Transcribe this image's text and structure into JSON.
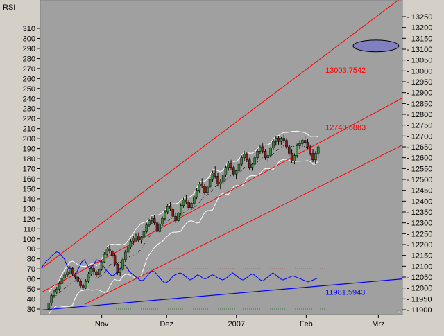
{
  "colors": {
    "window_bg": "#d4d0c8",
    "plot_bg": "#a0a0a0",
    "channel": "#ff0000",
    "rsi": "#0000ff",
    "band": "#ffffff",
    "candle_up": "#3c8c3c",
    "candle_down": "#8b1a1a",
    "ellipse_fill": "#8080c0",
    "rsi_upper_ref": "#a05050",
    "rsi_lower_ref": "#408040"
  },
  "chart_data": {
    "type": "line",
    "left_axis_label": "RSI",
    "left_axis": {
      "min": 30,
      "max": 310,
      "step": 10
    },
    "right_axis": {
      "min": 11900,
      "max": 13250,
      "step": 50
    },
    "x_range": [
      0,
      150
    ],
    "x_ticks": [
      {
        "label": "Nov",
        "x": 25
      },
      {
        "label": "Dez",
        "x": 52
      },
      {
        "label": "2007",
        "x": 81
      },
      {
        "label": "Feb",
        "x": 110
      },
      {
        "label": "Mrz",
        "x": 140
      }
    ],
    "price_annotations": [
      {
        "label": "13003.7542",
        "x": 118,
        "y": 13003.7542,
        "color": "#ff0000"
      },
      {
        "label": "12740.6883",
        "x": 118,
        "y": 12740.6883,
        "color": "#ff0000"
      },
      {
        "label": "11981.5943",
        "x": 118,
        "y": 11981.5943,
        "color": "#0000ff"
      }
    ],
    "channel_lines": [
      {
        "name": "upper",
        "from": [
          0,
          12090
        ],
        "to": [
          150,
          13340
        ]
      },
      {
        "name": "middle",
        "from": [
          0,
          11980
        ],
        "to": [
          150,
          12875
        ]
      },
      {
        "name": "lower",
        "from": [
          18,
          11925
        ],
        "to": [
          150,
          12658
        ]
      }
    ],
    "rsi_trendline": {
      "from": [
        0,
        29
      ],
      "to": [
        150,
        60
      ]
    },
    "rsi_reference_levels": [
      70,
      30
    ],
    "ellipse": {
      "center": [
        139,
        13115
      ],
      "rx": 9.5,
      "ry": 27
    },
    "rsi_values": [
      71,
      75,
      78,
      80,
      83,
      85,
      87,
      86,
      83,
      80,
      74,
      69,
      66,
      64,
      67,
      72,
      77,
      79,
      75,
      70,
      72,
      76,
      79,
      78,
      75,
      71,
      68,
      65,
      63,
      64,
      67,
      70,
      72,
      74,
      71,
      67,
      65,
      63,
      61,
      59,
      58,
      60,
      63,
      66,
      68,
      67,
      64,
      61,
      58,
      56,
      57,
      59,
      62,
      64,
      65,
      66,
      65,
      63,
      61,
      59,
      60,
      62,
      64,
      63,
      61,
      60,
      61,
      63,
      64,
      63,
      61,
      60,
      59,
      60,
      62,
      64,
      66,
      64,
      62,
      60,
      59,
      60,
      62,
      64,
      65,
      63,
      61,
      59,
      58,
      60,
      62,
      64,
      66,
      64,
      62,
      60,
      59,
      60,
      61,
      62,
      63,
      62,
      61,
      60,
      59,
      58,
      57,
      58,
      59,
      60,
      61
    ],
    "candles": [
      [
        11905,
        11935,
        11900,
        11930
      ],
      [
        11930,
        11975,
        11920,
        11965
      ],
      [
        11965,
        11990,
        11955,
        11980
      ],
      [
        11980,
        12005,
        11970,
        11995
      ],
      [
        11995,
        12030,
        11985,
        12020
      ],
      [
        12020,
        12055,
        12015,
        12045
      ],
      [
        12045,
        12075,
        12035,
        12060
      ],
      [
        12060,
        12085,
        12050,
        12075
      ],
      [
        12075,
        12100,
        12065,
        12090
      ],
      [
        12090,
        12095,
        12055,
        12065
      ],
      [
        12065,
        12070,
        12040,
        12050
      ],
      [
        12050,
        12055,
        12020,
        12030
      ],
      [
        12030,
        12040,
        12000,
        12010
      ],
      [
        12010,
        12020,
        11990,
        12000
      ],
      [
        12000,
        12040,
        11995,
        12030
      ],
      [
        12030,
        12075,
        12025,
        12065
      ],
      [
        12065,
        12100,
        12055,
        12090
      ],
      [
        12090,
        12105,
        12060,
        12075
      ],
      [
        12075,
        12080,
        12050,
        12060
      ],
      [
        12060,
        12090,
        12055,
        12085
      ],
      [
        12085,
        12130,
        12080,
        12120
      ],
      [
        12120,
        12165,
        12115,
        12155
      ],
      [
        12155,
        12190,
        12145,
        12180
      ],
      [
        12180,
        12200,
        12160,
        12170
      ],
      [
        12170,
        12175,
        12140,
        12150
      ],
      [
        12150,
        12160,
        12100,
        12110
      ],
      [
        12110,
        12115,
        12060,
        12070
      ],
      [
        12070,
        12090,
        12055,
        12085
      ],
      [
        12085,
        12140,
        12080,
        12130
      ],
      [
        12130,
        12175,
        12120,
        12165
      ],
      [
        12165,
        12200,
        12155,
        12190
      ],
      [
        12190,
        12225,
        12180,
        12215
      ],
      [
        12215,
        12240,
        12200,
        12230
      ],
      [
        12230,
        12250,
        12215,
        12240
      ],
      [
        12240,
        12255,
        12210,
        12220
      ],
      [
        12220,
        12240,
        12205,
        12235
      ],
      [
        12235,
        12270,
        12225,
        12260
      ],
      [
        12260,
        12300,
        12250,
        12290
      ],
      [
        12290,
        12320,
        12280,
        12310
      ],
      [
        12310,
        12330,
        12295,
        12320
      ],
      [
        12320,
        12335,
        12290,
        12300
      ],
      [
        12300,
        12315,
        12250,
        12260
      ],
      [
        12260,
        12300,
        12255,
        12295
      ],
      [
        12295,
        12330,
        12285,
        12320
      ],
      [
        12320,
        12360,
        12310,
        12350
      ],
      [
        12350,
        12385,
        12340,
        12375
      ],
      [
        12375,
        12395,
        12355,
        12365
      ],
      [
        12365,
        12370,
        12320,
        12330
      ],
      [
        12330,
        12345,
        12300,
        12310
      ],
      [
        12310,
        12350,
        12305,
        12345
      ],
      [
        12345,
        12390,
        12335,
        12380
      ],
      [
        12380,
        12415,
        12370,
        12405
      ],
      [
        12405,
        12430,
        12385,
        12395
      ],
      [
        12395,
        12405,
        12360,
        12370
      ],
      [
        12370,
        12395,
        12360,
        12390
      ],
      [
        12390,
        12430,
        12380,
        12420
      ],
      [
        12420,
        12460,
        12410,
        12450
      ],
      [
        12450,
        12490,
        12440,
        12480
      ],
      [
        12480,
        12505,
        12460,
        12470
      ],
      [
        12470,
        12480,
        12430,
        12440
      ],
      [
        12440,
        12470,
        12430,
        12465
      ],
      [
        12465,
        12510,
        12455,
        12500
      ],
      [
        12500,
        12540,
        12490,
        12530
      ],
      [
        12530,
        12560,
        12505,
        12515
      ],
      [
        12515,
        12530,
        12470,
        12480
      ],
      [
        12480,
        12500,
        12455,
        12490
      ],
      [
        12490,
        12530,
        12480,
        12520
      ],
      [
        12520,
        12565,
        12510,
        12555
      ],
      [
        12555,
        12585,
        12540,
        12575
      ],
      [
        12575,
        12590,
        12545,
        12555
      ],
      [
        12555,
        12565,
        12515,
        12525
      ],
      [
        12525,
        12545,
        12500,
        12540
      ],
      [
        12540,
        12580,
        12530,
        12570
      ],
      [
        12570,
        12610,
        12560,
        12600
      ],
      [
        12600,
        12630,
        12585,
        12615
      ],
      [
        12615,
        12625,
        12580,
        12590
      ],
      [
        12590,
        12600,
        12545,
        12555
      ],
      [
        12555,
        12575,
        12540,
        12570
      ],
      [
        12570,
        12610,
        12560,
        12600
      ],
      [
        12600,
        12640,
        12590,
        12630
      ],
      [
        12630,
        12660,
        12615,
        12650
      ],
      [
        12650,
        12665,
        12620,
        12630
      ],
      [
        12630,
        12640,
        12590,
        12600
      ],
      [
        12600,
        12620,
        12580,
        12610
      ],
      [
        12610,
        12650,
        12600,
        12645
      ],
      [
        12645,
        12685,
        12635,
        12675
      ],
      [
        12675,
        12700,
        12655,
        12690
      ],
      [
        12690,
        12700,
        12660,
        12675
      ],
      [
        12675,
        12695,
        12660,
        12690
      ],
      [
        12690,
        12705,
        12670,
        12680
      ],
      [
        12680,
        12690,
        12640,
        12650
      ],
      [
        12650,
        12660,
        12610,
        12620
      ],
      [
        12620,
        12640,
        12575,
        12585
      ],
      [
        12585,
        12620,
        12570,
        12610
      ],
      [
        12610,
        12665,
        12600,
        12655
      ],
      [
        12655,
        12680,
        12640,
        12665
      ],
      [
        12665,
        12690,
        12650,
        12680
      ],
      [
        12680,
        12700,
        12660,
        12670
      ],
      [
        12670,
        12685,
        12640,
        12650
      ],
      [
        12650,
        12660,
        12610,
        12620
      ],
      [
        12620,
        12640,
        12580,
        12590
      ],
      [
        12590,
        12630,
        12570,
        12620
      ],
      [
        12620,
        12660,
        12600,
        12650
      ]
    ]
  }
}
